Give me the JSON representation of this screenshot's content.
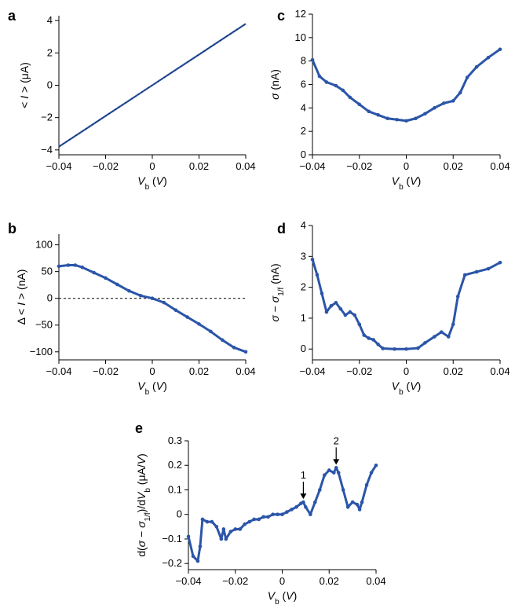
{
  "series_color": "#2b55a8",
  "chart_data": [
    {
      "id": "a",
      "panel_label": "a",
      "type": "line",
      "xlabel": "V_b (V)",
      "ylabel": "< I > (μA)",
      "xlim": [
        -0.04,
        0.04
      ],
      "ylim": [
        -4.3,
        4.3
      ],
      "xticks": [
        -0.04,
        -0.02,
        0,
        0.02,
        0.04
      ],
      "xtick_labels": [
        "−0.04",
        "−0.02",
        "0",
        "0.02",
        "0.04"
      ],
      "yticks": [
        -4,
        -2,
        0,
        2,
        4
      ],
      "ytick_labels": [
        "−4",
        "−2",
        "0",
        "2",
        "4"
      ],
      "series": [
        {
          "x": [
            -0.04,
            -0.03,
            -0.02,
            -0.01,
            0,
            0.01,
            0.02,
            0.03,
            0.04
          ],
          "y": [
            -3.8,
            -2.85,
            -1.9,
            -0.95,
            0,
            0.95,
            1.9,
            2.85,
            3.8
          ]
        }
      ]
    },
    {
      "id": "b",
      "panel_label": "b",
      "type": "scatter",
      "xlabel": "V_b (V)",
      "ylabel": "Δ < I > (nA)",
      "xlim": [
        -0.04,
        0.04
      ],
      "ylim": [
        -115,
        120
      ],
      "xticks": [
        -0.04,
        -0.02,
        0,
        0.02,
        0.04
      ],
      "xtick_labels": [
        "−0.04",
        "−0.02",
        "0",
        "0.02",
        "0.04"
      ],
      "yticks": [
        -100,
        -50,
        0,
        50,
        100
      ],
      "ytick_labels": [
        "−100",
        "−50",
        "0",
        "50",
        "100"
      ],
      "zero_line": true,
      "series": [
        {
          "x": [
            -0.04,
            -0.036,
            -0.033,
            -0.03,
            -0.025,
            -0.02,
            -0.015,
            -0.01,
            -0.005,
            0,
            0.005,
            0.01,
            0.015,
            0.02,
            0.025,
            0.03,
            0.035,
            0.04
          ],
          "y": [
            60,
            62,
            62,
            58,
            48,
            38,
            26,
            14,
            5,
            0,
            -8,
            -22,
            -35,
            -48,
            -62,
            -78,
            -92,
            -100
          ]
        }
      ]
    },
    {
      "id": "c",
      "panel_label": "c",
      "type": "scatter",
      "xlabel": "V_b (V)",
      "ylabel": "σ (nA)",
      "xlim": [
        -0.04,
        0.04
      ],
      "ylim": [
        0,
        12
      ],
      "xticks": [
        -0.04,
        -0.02,
        0,
        0.02,
        0.04
      ],
      "xtick_labels": [
        "−0.04",
        "−0.02",
        "0",
        "0.02",
        "0.04"
      ],
      "yticks": [
        0,
        2,
        4,
        6,
        8,
        10,
        12
      ],
      "ytick_labels": [
        "0",
        "2",
        "4",
        "6",
        "8",
        "10",
        "12"
      ],
      "series": [
        {
          "x": [
            -0.04,
            -0.037,
            -0.034,
            -0.03,
            -0.027,
            -0.024,
            -0.02,
            -0.016,
            -0.012,
            -0.008,
            -0.004,
            0,
            0.004,
            0.008,
            0.012,
            0.016,
            0.02,
            0.023,
            0.026,
            0.03,
            0.035,
            0.04
          ],
          "y": [
            8.1,
            6.7,
            6.2,
            5.9,
            5.5,
            4.9,
            4.3,
            3.7,
            3.4,
            3.1,
            3.0,
            2.9,
            3.1,
            3.5,
            4.0,
            4.4,
            4.6,
            5.3,
            6.6,
            7.5,
            8.3,
            9.0
          ]
        }
      ]
    },
    {
      "id": "d",
      "panel_label": "d",
      "type": "scatter",
      "xlabel": "V_b (V)",
      "ylabel": "σ − σ_1/f (nA)",
      "xlim": [
        -0.04,
        0.04
      ],
      "ylim": [
        -0.35,
        4
      ],
      "xticks": [
        -0.04,
        -0.02,
        0,
        0.02,
        0.04
      ],
      "xtick_labels": [
        "−0.04",
        "−0.02",
        "0",
        "0.02",
        "0.04"
      ],
      "yticks": [
        0,
        1,
        2,
        3,
        4
      ],
      "ytick_labels": [
        "0",
        "1",
        "2",
        "3",
        "4"
      ],
      "series": [
        {
          "x": [
            -0.04,
            -0.038,
            -0.036,
            -0.034,
            -0.032,
            -0.03,
            -0.028,
            -0.026,
            -0.024,
            -0.022,
            -0.02,
            -0.018,
            -0.016,
            -0.014,
            -0.012,
            -0.01,
            -0.005,
            0,
            0.005,
            0.008,
            0.012,
            0.015,
            0.018,
            0.02,
            0.022,
            0.025,
            0.03,
            0.035,
            0.04
          ],
          "y": [
            2.9,
            2.4,
            1.8,
            1.2,
            1.4,
            1.5,
            1.3,
            1.1,
            1.2,
            1.1,
            0.8,
            0.45,
            0.35,
            0.3,
            0.15,
            0.02,
            0.0,
            0.0,
            0.03,
            0.2,
            0.4,
            0.55,
            0.4,
            0.8,
            1.7,
            2.4,
            2.5,
            2.6,
            2.8
          ]
        }
      ]
    },
    {
      "id": "e",
      "panel_label": "e",
      "type": "scatter",
      "xlabel": "V_b (V)",
      "ylabel": "d(σ − σ_1/f)/dV_b (μA/V)",
      "xlim": [
        -0.04,
        0.04
      ],
      "ylim": [
        -0.225,
        0.3
      ],
      "xticks": [
        -0.04,
        -0.02,
        0,
        0.02,
        0.04
      ],
      "xtick_labels": [
        "−0.04",
        "−0.02",
        "0",
        "0.02",
        "0.04"
      ],
      "yticks": [
        -0.2,
        -0.1,
        0,
        0.1,
        0.2,
        0.3
      ],
      "ytick_labels": [
        "−0.2",
        "−0.1",
        "0",
        "0.1",
        "0.2",
        "0.3"
      ],
      "annotations": [
        {
          "text": "1",
          "x": 0.009,
          "y": 0.05
        },
        {
          "text": "2",
          "x": 0.023,
          "y": 0.19
        }
      ],
      "series": [
        {
          "x": [
            -0.04,
            -0.038,
            -0.036,
            -0.035,
            -0.034,
            -0.032,
            -0.03,
            -0.028,
            -0.026,
            -0.025,
            -0.024,
            -0.022,
            -0.02,
            -0.018,
            -0.016,
            -0.014,
            -0.012,
            -0.01,
            -0.008,
            -0.006,
            -0.004,
            -0.002,
            0,
            0.002,
            0.004,
            0.006,
            0.008,
            0.009,
            0.01,
            0.012,
            0.014,
            0.016,
            0.018,
            0.02,
            0.022,
            0.023,
            0.024,
            0.026,
            0.028,
            0.03,
            0.032,
            0.033,
            0.034,
            0.036,
            0.038,
            0.04
          ],
          "y": [
            -0.09,
            -0.17,
            -0.19,
            -0.13,
            -0.02,
            -0.03,
            -0.03,
            -0.05,
            -0.1,
            -0.06,
            -0.1,
            -0.07,
            -0.06,
            -0.06,
            -0.04,
            -0.03,
            -0.02,
            -0.02,
            -0.01,
            -0.01,
            0.0,
            0.0,
            0.0,
            0.01,
            0.02,
            0.03,
            0.045,
            0.05,
            0.03,
            0.0,
            0.05,
            0.1,
            0.16,
            0.18,
            0.17,
            0.19,
            0.17,
            0.1,
            0.03,
            0.05,
            0.04,
            0.02,
            0.05,
            0.12,
            0.17,
            0.2
          ]
        }
      ]
    }
  ]
}
